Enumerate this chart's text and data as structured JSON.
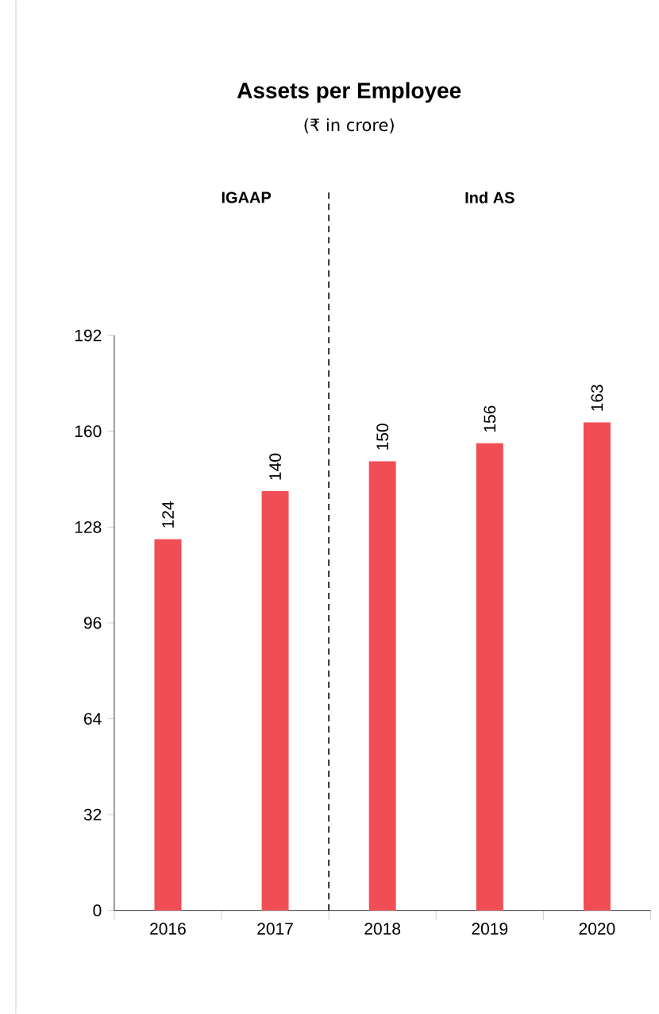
{
  "chart_data": {
    "type": "bar",
    "title": "Assets per Employee",
    "subtitle": "(₹ in crore)",
    "categories": [
      "2016",
      "2017",
      "2018",
      "2019",
      "2020"
    ],
    "values": [
      124,
      140,
      150,
      156,
      163
    ],
    "color": "#f04e54",
    "ylim": [
      0,
      192
    ],
    "yticks": [
      0,
      32,
      64,
      96,
      128,
      160,
      192
    ],
    "data_labels": true,
    "grid": false,
    "annotations": [
      "IGAAP",
      "Ind AS"
    ]
  }
}
